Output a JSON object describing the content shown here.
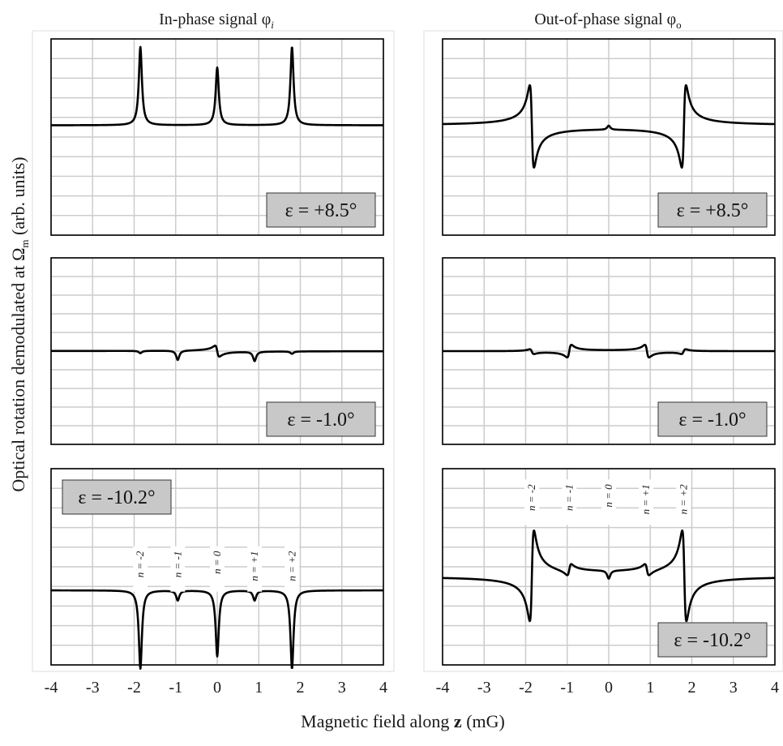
{
  "figure": {
    "col_titles": [
      {
        "text": "In-phase signal φ",
        "sub": "i"
      },
      {
        "text": "Out-of-phase signal φ",
        "sub": "o"
      }
    ],
    "ylabel": "Optical rotation demodulated at Ω",
    "ylabel_sub": "m",
    "ylabel_tail": " (arb. units)",
    "xlabel_pre": "Magnetic field along ",
    "xlabel_bold": "z",
    "xlabel_post": " (mG)"
  },
  "colors": {
    "trace": "#000000",
    "grid": "#cccccc",
    "badge_fill": "#c8c8c8",
    "frame": "#000000"
  },
  "chart_data": [
    {
      "type": "line",
      "title": "",
      "column": "In-phase signal φi",
      "epsilon": "ε = +8.5°",
      "badge_corner": "bottom-right",
      "xlim": [
        -4,
        4
      ],
      "xticks": [
        -4,
        -3,
        -2,
        -1,
        0,
        1,
        2,
        3,
        4
      ],
      "grid": true,
      "series": [
        {
          "values": [
            [
              -4,
              0
            ],
            [
              -1.85,
              0.95
            ],
            [
              0,
              0.7
            ],
            [
              1.8,
              0.95
            ],
            [
              4,
              0
            ]
          ]
        }
      ],
      "features": [
        {
          "x": -1.85,
          "kind": "peak",
          "a": 0.95
        },
        {
          "x": 0,
          "kind": "peak",
          "a": 0.7
        },
        {
          "x": 1.8,
          "kind": "peak",
          "a": 0.95
        }
      ]
    },
    {
      "type": "line",
      "title": "",
      "column": "Out-of-phase signal φo",
      "epsilon": "ε = +8.5°",
      "badge_corner": "bottom-right",
      "xlim": [
        -4,
        4
      ],
      "xticks": [
        -4,
        -3,
        -2,
        -1,
        0,
        1,
        2,
        3,
        4
      ],
      "grid": true,
      "series": [
        {
          "values": [
            [
              -4,
              0
            ],
            [
              -1.88,
              0.5
            ],
            [
              -1.82,
              -0.45
            ],
            [
              0,
              0.05
            ],
            [
              1.78,
              -0.45
            ],
            [
              1.84,
              0.5
            ],
            [
              4,
              0
            ]
          ]
        }
      ],
      "features": [
        {
          "x": -1.85,
          "kind": "disp",
          "a": 0.5
        },
        {
          "x": 0,
          "kind": "peak",
          "a": 0.05
        },
        {
          "x": 1.81,
          "kind": "disp",
          "a": -0.5
        }
      ]
    },
    {
      "type": "line",
      "title": "",
      "column": "In-phase signal φi",
      "epsilon": "ε = -1.0°",
      "badge_corner": "bottom-right",
      "xlim": [
        -4,
        4
      ],
      "xticks": [
        -4,
        -3,
        -2,
        -1,
        0,
        1,
        2,
        3,
        4
      ],
      "grid": true,
      "series": [
        {
          "values": [
            [
              -4,
              0
            ],
            [
              -0.95,
              -0.12
            ],
            [
              0,
              0.07
            ],
            [
              0.9,
              -0.12
            ],
            [
              4,
              0
            ]
          ]
        }
      ],
      "features": [
        {
          "x": -1.85,
          "kind": "peak",
          "a": -0.03
        },
        {
          "x": -0.95,
          "kind": "peak",
          "a": -0.12
        },
        {
          "x": 0,
          "kind": "disp",
          "a": 0.07
        },
        {
          "x": 0.9,
          "kind": "peak",
          "a": -0.12
        },
        {
          "x": 1.8,
          "kind": "peak",
          "a": -0.03
        }
      ]
    },
    {
      "type": "line",
      "title": "",
      "column": "Out-of-phase signal φo",
      "epsilon": "ε = -1.0°",
      "badge_corner": "bottom-right",
      "xlim": [
        -4,
        4
      ],
      "xticks": [
        -4,
        -3,
        -2,
        -1,
        0,
        1,
        2,
        3,
        4
      ],
      "grid": true,
      "series": [
        {
          "values": [
            [
              -4,
              0
            ],
            [
              -0.95,
              0.08
            ],
            [
              0.9,
              0.08
            ],
            [
              4,
              0
            ]
          ]
        }
      ],
      "features": [
        {
          "x": -1.85,
          "kind": "disp",
          "a": 0.03
        },
        {
          "x": -0.95,
          "kind": "disp",
          "a": -0.08
        },
        {
          "x": 0.92,
          "kind": "disp",
          "a": 0.08
        },
        {
          "x": 1.8,
          "kind": "disp",
          "a": -0.03
        }
      ]
    },
    {
      "type": "line",
      "title": "",
      "column": "In-phase signal φi",
      "epsilon": "ε = -10.2°",
      "badge_corner": "top-left",
      "xlim": [
        -4,
        4
      ],
      "xticks": [
        -4,
        -3,
        -2,
        -1,
        0,
        1,
        2,
        3,
        4
      ],
      "grid": true,
      "n_labels": [
        "n = -2",
        "n = -1",
        "n = 0",
        "n = +1",
        "n = +2"
      ],
      "series": [
        {
          "values": [
            [
              -4,
              0
            ],
            [
              -1.85,
              -0.95
            ],
            [
              -0.95,
              -0.12
            ],
            [
              0,
              -0.8
            ],
            [
              0.9,
              -0.12
            ],
            [
              1.8,
              -0.95
            ],
            [
              4,
              0
            ]
          ]
        }
      ],
      "features": [
        {
          "x": -1.85,
          "kind": "peak",
          "a": -0.95
        },
        {
          "x": -0.95,
          "kind": "peak",
          "a": -0.12
        },
        {
          "x": 0,
          "kind": "peak",
          "a": -0.8
        },
        {
          "x": 0.9,
          "kind": "peak",
          "a": -0.12
        },
        {
          "x": 1.8,
          "kind": "peak",
          "a": -0.95
        }
      ]
    },
    {
      "type": "line",
      "title": "",
      "column": "Out-of-phase signal φo",
      "epsilon": "ε = -10.2°",
      "badge_corner": "bottom-right",
      "xlim": [
        -4,
        4
      ],
      "xticks": [
        -4,
        -3,
        -2,
        -1,
        0,
        1,
        2,
        3,
        4
      ],
      "grid": true,
      "n_labels": [
        "n = -2",
        "n = -1",
        "n = 0",
        "n = +1",
        "n = +2"
      ],
      "series": [
        {
          "values": [
            [
              -4,
              0
            ],
            [
              -1.85,
              0.45
            ],
            [
              -0.95,
              0.07
            ],
            [
              0,
              -0.1
            ],
            [
              0.92,
              0.07
            ],
            [
              1.82,
              0.45
            ],
            [
              4,
              0
            ]
          ]
        }
      ],
      "features": [
        {
          "x": -1.85,
          "kind": "disp",
          "a": -0.55
        },
        {
          "x": -0.95,
          "kind": "disp",
          "a": -0.07
        },
        {
          "x": 0,
          "kind": "peak",
          "a": -0.1
        },
        {
          "x": 0.92,
          "kind": "disp",
          "a": 0.07
        },
        {
          "x": 1.82,
          "kind": "disp",
          "a": 0.55
        }
      ]
    }
  ]
}
